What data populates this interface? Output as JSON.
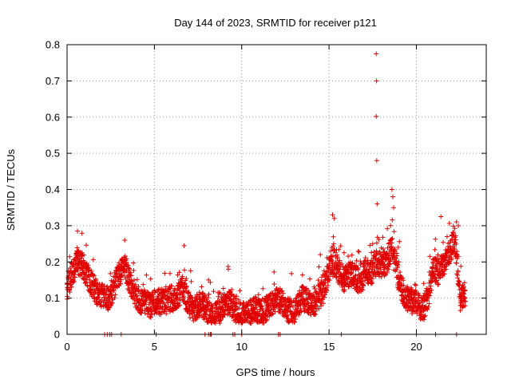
{
  "chart_data": {
    "type": "scatter",
    "title": "Day 144 of 2023, SRMTID for receiver p121",
    "xlabel": "GPS time / hours",
    "ylabel": "SRMTID / TECUs",
    "xlim": [
      0,
      24
    ],
    "ylim": [
      0,
      0.8
    ],
    "x_ticks": [
      0,
      5,
      10,
      15,
      20
    ],
    "y_ticks": [
      0,
      0.1,
      0.2,
      0.3,
      0.4,
      0.5,
      0.6,
      0.7,
      0.8
    ],
    "x_tick_labels": [
      "0",
      "5",
      "10",
      "15",
      "20"
    ],
    "y_tick_labels": [
      "0",
      "0.1",
      "0.2",
      "0.3",
      "0.4",
      "0.5",
      "0.6",
      "0.7",
      "0.8"
    ],
    "grid": true,
    "marker": "+",
    "marker_color": "#e00000",
    "trend": {
      "x": [
        0,
        0.3,
        0.6,
        0.9,
        1.2,
        1.5,
        1.8,
        2.1,
        2.4,
        2.7,
        3.0,
        3.3,
        3.6,
        3.9,
        4.2,
        4.5,
        4.8,
        5.1,
        5.4,
        5.7,
        6.0,
        6.3,
        6.6,
        6.9,
        7.2,
        7.5,
        7.8,
        8.1,
        8.4,
        8.7,
        9.0,
        9.3,
        9.6,
        9.9,
        10.2,
        10.5,
        10.8,
        11.1,
        11.4,
        11.7,
        12.0,
        12.3,
        12.6,
        12.9,
        13.2,
        13.5,
        13.8,
        14.1,
        14.4,
        14.7,
        15.0,
        15.3,
        15.6,
        15.9,
        16.2,
        16.5,
        16.8,
        17.1,
        17.4,
        17.7,
        18.0,
        18.3,
        18.6,
        18.9,
        19.2,
        19.5,
        19.8,
        20.1,
        20.4,
        20.7,
        21.0,
        21.3,
        21.6,
        21.9,
        22.2,
        22.5,
        22.8
      ],
      "y": [
        0.13,
        0.17,
        0.2,
        0.19,
        0.16,
        0.13,
        0.11,
        0.1,
        0.1,
        0.13,
        0.17,
        0.19,
        0.14,
        0.11,
        0.09,
        0.09,
        0.08,
        0.09,
        0.09,
        0.09,
        0.1,
        0.1,
        0.13,
        0.09,
        0.07,
        0.08,
        0.08,
        0.06,
        0.05,
        0.06,
        0.08,
        0.09,
        0.07,
        0.05,
        0.06,
        0.06,
        0.07,
        0.06,
        0.07,
        0.08,
        0.1,
        0.09,
        0.07,
        0.06,
        0.08,
        0.1,
        0.09,
        0.08,
        0.1,
        0.12,
        0.18,
        0.2,
        0.17,
        0.15,
        0.17,
        0.16,
        0.14,
        0.18,
        0.17,
        0.2,
        0.19,
        0.2,
        0.24,
        0.17,
        0.12,
        0.1,
        0.09,
        0.08,
        0.07,
        0.11,
        0.18,
        0.17,
        0.2,
        0.23,
        0.26,
        0.1,
        0.11
      ],
      "spread": 0.035
    },
    "spike_points": [
      {
        "x": 17.7,
        "y": 0.775
      },
      {
        "x": 17.72,
        "y": 0.7
      },
      {
        "x": 17.7,
        "y": 0.602
      },
      {
        "x": 17.73,
        "y": 0.48
      },
      {
        "x": 17.75,
        "y": 0.36
      },
      {
        "x": 18.6,
        "y": 0.4
      },
      {
        "x": 18.65,
        "y": 0.38
      },
      {
        "x": 18.7,
        "y": 0.35
      },
      {
        "x": 15.2,
        "y": 0.33
      },
      {
        "x": 15.3,
        "y": 0.32
      },
      {
        "x": 21.4,
        "y": 0.325
      },
      {
        "x": 22.4,
        "y": 0.3
      },
      {
        "x": 0.6,
        "y": 0.285
      },
      {
        "x": 3.3,
        "y": 0.26
      },
      {
        "x": 6.7,
        "y": 0.245
      },
      {
        "x": 14.5,
        "y": 0.22
      },
      {
        "x": 17.5,
        "y": 0.25
      },
      {
        "x": 19.0,
        "y": 0.2
      }
    ],
    "zero_points": {
      "x": [
        2.15,
        2.3,
        2.45,
        2.55,
        3.1,
        5.1,
        7.9,
        8.1,
        8.2,
        8.25,
        9.5,
        9.6,
        10.0,
        12.1,
        12.2,
        15.7,
        20.0,
        21.1,
        22.3
      ]
    }
  }
}
